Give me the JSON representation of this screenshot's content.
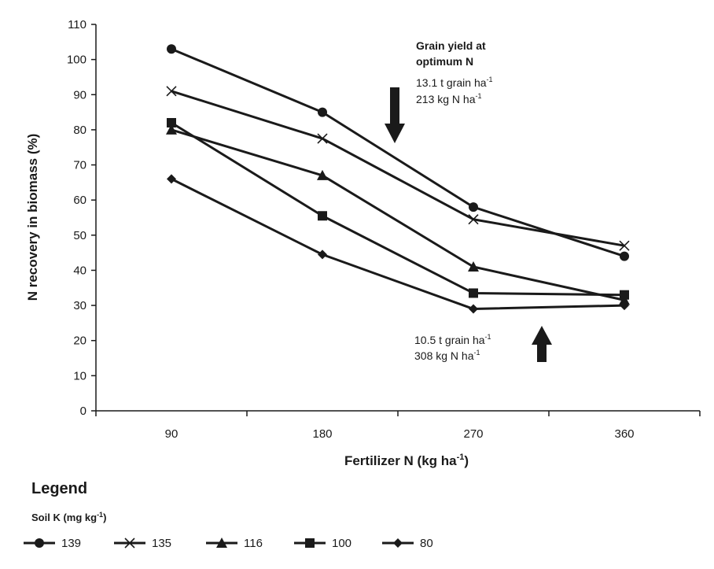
{
  "chart_data": {
    "type": "line",
    "title": "",
    "xlabel": "Fertilizer N (kg ha",
    "xlabel_sup": "-1",
    "xlabel_tail": ")",
    "ylabel": "N recovery in biomass (%)",
    "x": [
      90,
      180,
      270,
      360
    ],
    "x_tick_labels": [
      "90",
      "180",
      "270",
      "360"
    ],
    "y_ticks": [
      0,
      10,
      20,
      30,
      40,
      50,
      60,
      70,
      80,
      90,
      100,
      110
    ],
    "ylim": [
      0,
      110
    ],
    "grid": false,
    "series": [
      {
        "name": "139",
        "marker": "circle",
        "values": [
          103,
          85,
          58,
          44
        ]
      },
      {
        "name": "135",
        "marker": "x",
        "values": [
          91,
          77.5,
          54.5,
          47
        ]
      },
      {
        "name": "116",
        "marker": "triangle",
        "values": [
          80,
          67,
          41,
          31.5
        ]
      },
      {
        "name": "100",
        "marker": "square",
        "values": [
          82,
          55.5,
          33.5,
          33
        ]
      },
      {
        "name": "80",
        "marker": "diamond",
        "values": [
          66,
          44.5,
          29,
          30
        ]
      }
    ],
    "annotations": {
      "top": {
        "heading_line1": "Grain yield at",
        "heading_line2": "optimum N",
        "line1": "13.1 t grain ha",
        "line2": "213 kg N ha",
        "sup": "-1",
        "arrow": "down"
      },
      "bottom": {
        "line1": "10.5 t grain ha",
        "line2": "308 kg N ha",
        "sup": "-1",
        "arrow": "up"
      }
    },
    "legend": {
      "title": "Legend",
      "subtitle": "Soil K (mg kg",
      "subtitle_sup": "-1",
      "subtitle_tail": ")",
      "placement": "bottom"
    },
    "colors": {
      "line": "#1a1a1a",
      "axis": "#1a1a1a"
    }
  }
}
